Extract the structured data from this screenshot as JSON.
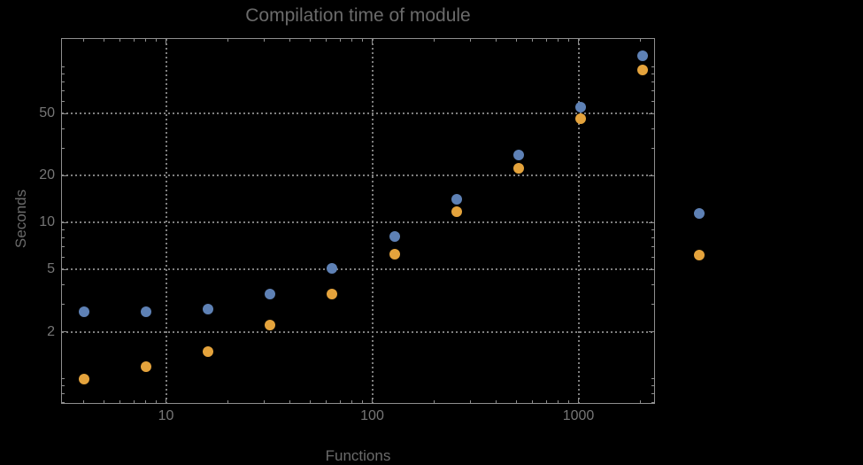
{
  "page": {
    "background": "#000000"
  },
  "chart_data": {
    "type": "scatter",
    "title": "Compilation time of module",
    "xlabel": "Functions",
    "ylabel": "Seconds",
    "x_scale": "log",
    "y_scale": "log",
    "xlim": [
      3.1,
      2350
    ],
    "ylim": [
      0.69,
      152
    ],
    "grid": "dotted lines at major ticks",
    "legend_position": "right-outside",
    "x_major_ticks": [
      {
        "value": 10,
        "label": "10"
      },
      {
        "value": 100,
        "label": "100"
      },
      {
        "value": 1000,
        "label": "1000"
      }
    ],
    "x_minor_ticks": [
      4,
      5,
      6,
      7,
      8,
      9,
      20,
      30,
      40,
      50,
      60,
      70,
      80,
      90,
      200,
      300,
      400,
      500,
      600,
      700,
      800,
      900,
      2000
    ],
    "y_major_ticks": [
      {
        "value": 2,
        "label": "2"
      },
      {
        "value": 5,
        "label": "5"
      },
      {
        "value": 10,
        "label": "10"
      },
      {
        "value": 20,
        "label": "20"
      },
      {
        "value": 50,
        "label": "50"
      }
    ],
    "y_minor_ticks": [
      0.7,
      0.8,
      0.9,
      1,
      3,
      4,
      6,
      7,
      8,
      9,
      30,
      40,
      60,
      70,
      80,
      90,
      100
    ],
    "x": [
      4,
      8,
      16,
      32,
      64,
      128,
      256,
      512,
      1024,
      2048
    ],
    "series": [
      {
        "name": "series-blue",
        "color": "#5E81B5",
        "values": [
          2.7,
          2.7,
          2.8,
          3.5,
          5.1,
          8.2,
          14.1,
          27,
          55,
          117
        ]
      },
      {
        "name": "series-orange",
        "color": "#E4A33C",
        "values": [
          1.0,
          1.2,
          1.5,
          2.2,
          3.5,
          6.3,
          11.8,
          22.4,
          46,
          95
        ]
      }
    ],
    "legend_entries": [
      {
        "series": "series-blue",
        "color": "#5E81B5",
        "label": ""
      },
      {
        "series": "series-orange",
        "color": "#E4A33C",
        "label": ""
      }
    ]
  },
  "colors": {
    "background": "#000000",
    "frame": "#8F8F8F",
    "grid": "#7F7F7F",
    "title_text": "#6B6B6B",
    "axis_label_text": "#6B6B6B",
    "tick_label_text": "#767676"
  }
}
